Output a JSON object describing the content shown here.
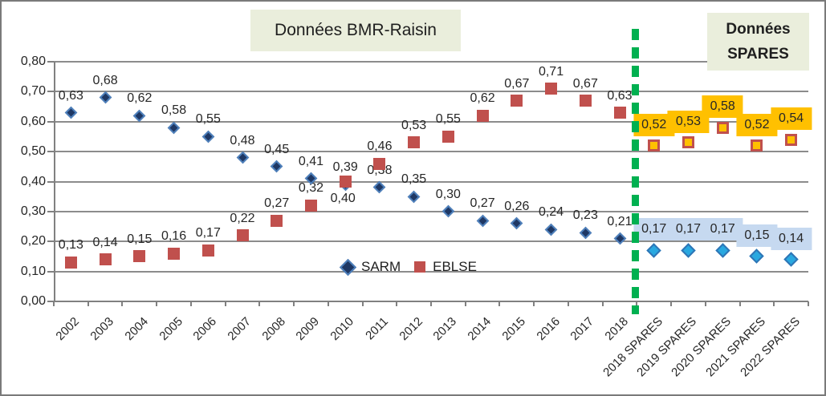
{
  "annotations": {
    "bmr_title": "Données BMR-Raisin",
    "spares_title_lines": [
      "Données",
      "SPARES"
    ]
  },
  "chart_data": {
    "type": "scatter",
    "title": "",
    "xlabel": "",
    "ylabel": "",
    "ylim": [
      0,
      0.8
    ],
    "ytick_step": 0.1,
    "ytick_labels": [
      "0,00",
      "0,10",
      "0,20",
      "0,30",
      "0,40",
      "0,50",
      "0,60",
      "0,70",
      "0,80"
    ],
    "decimal_separator": ",",
    "grid": true,
    "legend_entries": [
      "SARM",
      "EBLSE"
    ],
    "groups": [
      {
        "name": "Données BMR-Raisin",
        "categories": [
          "2002",
          "2003",
          "2004",
          "2005",
          "2006",
          "2007",
          "2008",
          "2009",
          "2010",
          "2011",
          "2012",
          "2013",
          "2014",
          "2015",
          "2016",
          "2017",
          "2018"
        ],
        "series": [
          {
            "name": "SARM",
            "values": [
              0.63,
              0.68,
              0.62,
              0.58,
              0.55,
              0.48,
              0.45,
              0.41,
              0.39,
              0.38,
              0.35,
              0.3,
              0.27,
              0.26,
              0.24,
              0.23,
              0.21
            ]
          },
          {
            "name": "EBLSE",
            "values": [
              0.13,
              0.14,
              0.15,
              0.16,
              0.17,
              0.22,
              0.27,
              0.32,
              0.4,
              0.46,
              0.53,
              0.55,
              0.62,
              0.67,
              0.71,
              0.67,
              0.63
            ]
          }
        ]
      },
      {
        "name": "Données SPARES",
        "categories": [
          "2018 SPARES",
          "2019 SPARES",
          "2020 SPARES",
          "2021 SPARES",
          "2022 SPARES"
        ],
        "series": [
          {
            "name": "SARM",
            "values": [
              0.17,
              0.17,
              0.17,
              0.15,
              0.14
            ]
          },
          {
            "name": "EBLSE",
            "values": [
              0.52,
              0.53,
              0.58,
              0.52,
              0.54
            ]
          }
        ]
      }
    ],
    "styles": {
      "bmr_sarm_fill": "#1F3864",
      "bmr_sarm_border": "#4F81BD",
      "bmr_eblse_fill": "#C0504D",
      "spares_sarm_fill": "#29A8E0",
      "spares_sarm_border": "#2E75B6",
      "spares_eblse_fill": "#FFC000",
      "spares_eblse_border": "#C0504D",
      "spares_sarm_label_bg": "#C6D9F0",
      "spares_eblse_label_bg": "#FFC000",
      "separator_color": "#00B050",
      "title_bg": "#EAEEDC",
      "grid_color": "#8C8C8C",
      "text_color": "#262626"
    }
  }
}
